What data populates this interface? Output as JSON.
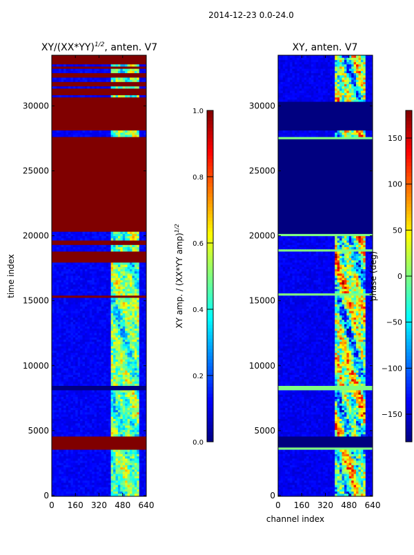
{
  "suptitle": "2014-12-23 0.0-24.0",
  "chart_data": [
    {
      "type": "heatmap",
      "title_main": "XY/(XX*YY)",
      "title_sup": "1/2",
      "title_rest": ", anten. V7",
      "xlabel": "",
      "ylabel": "time index",
      "xlim": [
        0,
        640
      ],
      "ylim": [
        0,
        33900
      ],
      "xticks": [
        "0",
        "160",
        "320",
        "480",
        "640"
      ],
      "yticks": [
        "0",
        "5000",
        "10000",
        "15000",
        "20000",
        "25000",
        "30000"
      ],
      "colorbar": {
        "label": "XY amp. / (XX*YY amp)",
        "label_sup": "1/2",
        "range": [
          0,
          1
        ],
        "ticks": [
          "0.0",
          "0.2",
          "0.4",
          "0.6",
          "0.8",
          "1.0"
        ]
      },
      "baseline_value": 0.12,
      "active_channels": [
        400,
        600
      ],
      "active_value_range": [
        0.2,
        0.75
      ],
      "uniform_bands": [
        {
          "t": [
            3600,
            4500
          ],
          "value": 1.0
        },
        {
          "t": [
            8200,
            8500
          ],
          "value": 0.0
        },
        {
          "t": [
            15300,
            15500
          ],
          "value": 1.0
        },
        {
          "t": [
            18000,
            18800
          ],
          "value": 1.0
        },
        {
          "t": [
            19400,
            19600
          ],
          "value": 1.0
        },
        {
          "t": [
            20300,
            27400
          ],
          "value": 1.0
        },
        {
          "t": [
            27500,
            27700
          ],
          "value": 1.0
        },
        {
          "t": [
            28200,
            30600
          ],
          "value": 1.0
        },
        {
          "t": [
            30800,
            31300
          ],
          "value": 1.0
        },
        {
          "t": [
            31500,
            31900
          ],
          "value": 1.0
        },
        {
          "t": [
            32200,
            32600
          ],
          "value": 1.0
        },
        {
          "t": [
            32800,
            33100
          ],
          "value": 1.0
        },
        {
          "t": [
            33300,
            33900
          ],
          "value": 1.0
        }
      ]
    },
    {
      "type": "heatmap",
      "title_main": "XY, anten. V7",
      "title_sup": "",
      "title_rest": "",
      "xlabel": "channel index",
      "ylabel": "",
      "xlim": [
        0,
        640
      ],
      "ylim": [
        0,
        33900
      ],
      "xticks": [
        "0",
        "160",
        "320",
        "480",
        "640"
      ],
      "yticks": [
        "0",
        "5000",
        "10000",
        "15000",
        "20000",
        "25000",
        "30000"
      ],
      "colorbar": {
        "label": "phase (deg)",
        "label_sup": "",
        "range": [
          -180,
          180
        ],
        "ticks": [
          "-150",
          "-100",
          "-50",
          "0",
          "50",
          "100",
          "150"
        ]
      },
      "baseline_value": -140,
      "active_channels": [
        380,
        600
      ],
      "active_value_range": [
        -180,
        180
      ],
      "uniform_bands": [
        {
          "t": [
            3600,
            3750
          ],
          "value": 0
        },
        {
          "t": [
            3750,
            4600
          ],
          "value": -180
        },
        {
          "t": [
            8200,
            8500
          ],
          "value": 0
        },
        {
          "t": [
            11500,
            11600
          ],
          "value": 0
        },
        {
          "t": [
            15450,
            15550
          ],
          "value": 0
        },
        {
          "t": [
            18750,
            18900
          ],
          "value": 0
        },
        {
          "t": [
            19950,
            20100
          ],
          "value": 0
        },
        {
          "t": [
            20100,
            27400
          ],
          "value": -180
        },
        {
          "t": [
            27400,
            27550
          ],
          "value": 0
        },
        {
          "t": [
            28100,
            30400
          ],
          "value": -180
        }
      ]
    }
  ]
}
